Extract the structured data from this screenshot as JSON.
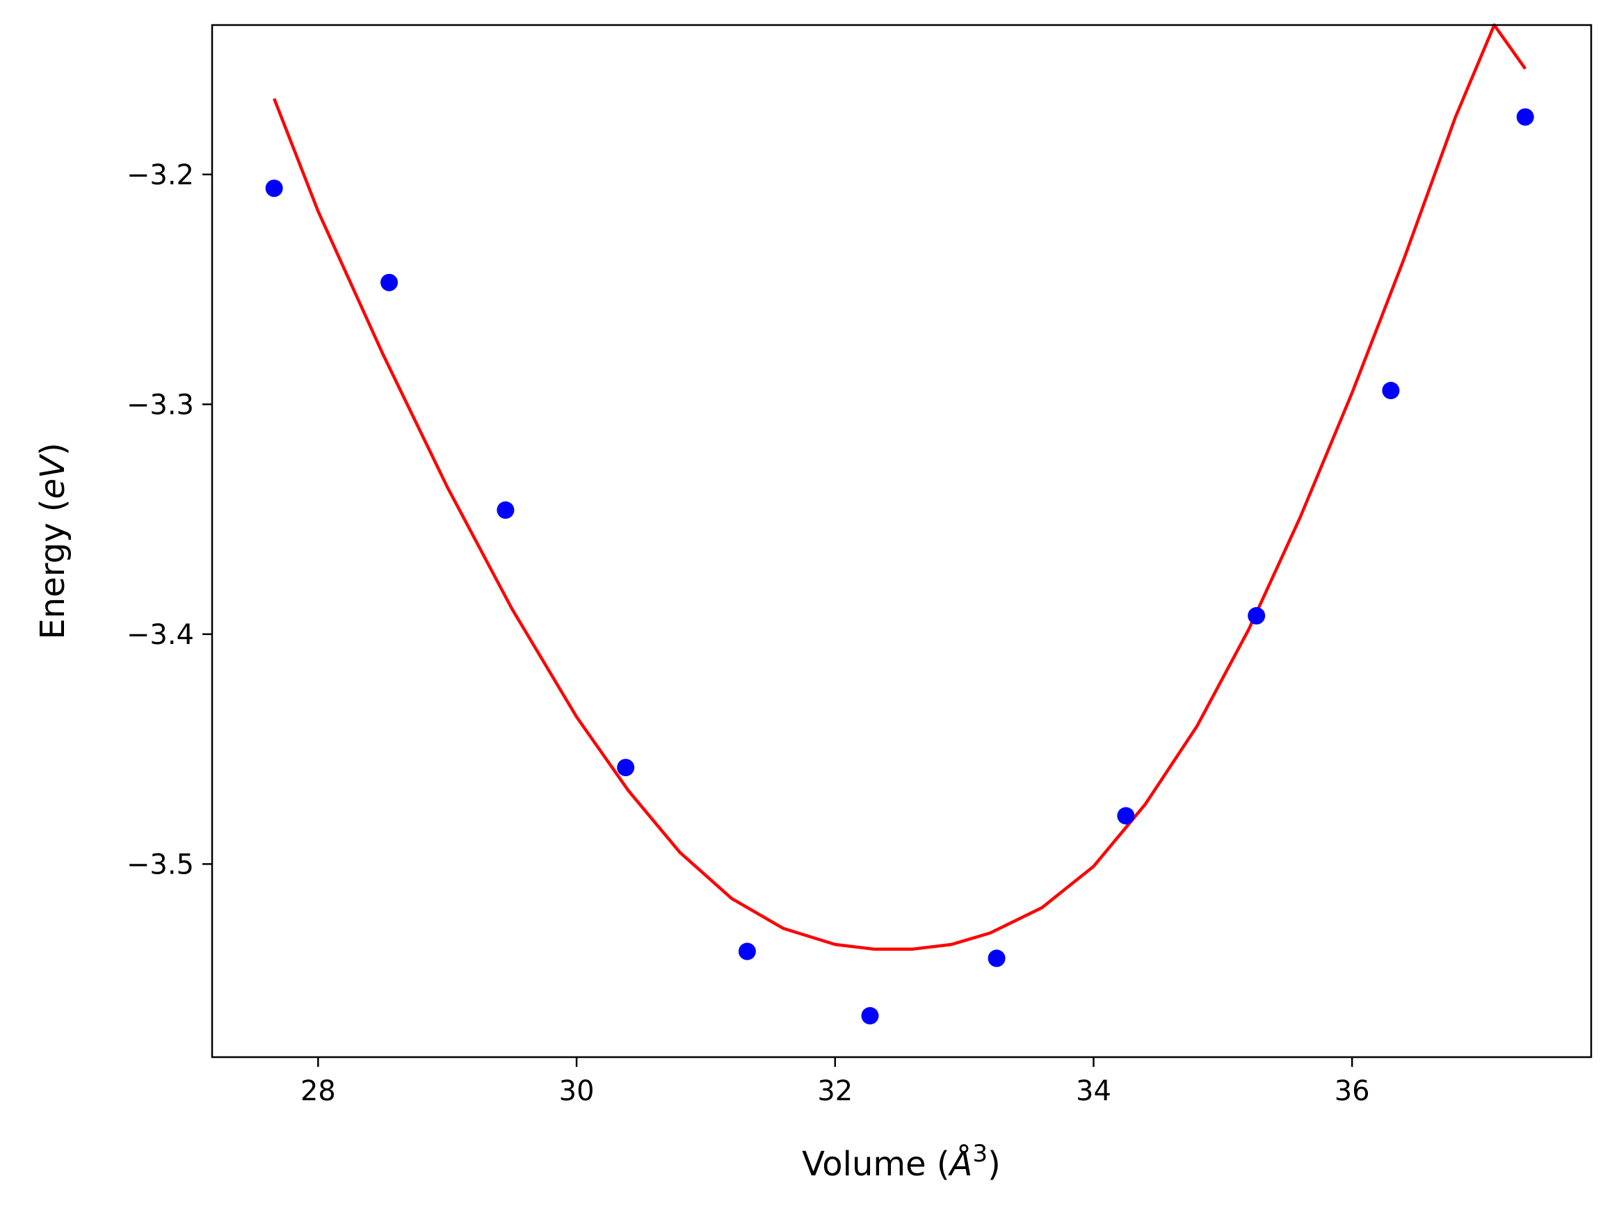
{
  "chart_data": {
    "type": "scatter",
    "xlabel": "Volume (Å³)",
    "xlabel_parts": {
      "prefix": "Volume (",
      "symbol": "Å",
      "superscript": "3",
      "suffix": ")"
    },
    "ylabel": "Energy (eV)",
    "ylabel_parts": {
      "prefix": "Energy (",
      "symbol": "eV",
      "suffix": ")"
    },
    "xlim": [
      27.18,
      37.85
    ],
    "ylim": [
      -3.584,
      -3.135
    ],
    "xticks": [
      28,
      30,
      32,
      34,
      36
    ],
    "xtick_labels": [
      "28",
      "30",
      "32",
      "34",
      "36"
    ],
    "yticks": [
      -3.2,
      -3.3,
      -3.4,
      -3.5
    ],
    "ytick_labels": [
      "−3.2",
      "−3.3",
      "−3.4",
      "−3.5"
    ],
    "grid": false,
    "series": [
      {
        "kind": "scatter",
        "color": "#0000ff",
        "x": [
          27.66,
          28.55,
          29.45,
          30.38,
          31.32,
          32.27,
          33.25,
          34.25,
          35.26,
          36.3,
          37.34
        ],
        "y": [
          -3.206,
          -3.247,
          -3.346,
          -3.458,
          -3.538,
          -3.566,
          -3.541,
          -3.479,
          -3.392,
          -3.294,
          -3.175
        ]
      },
      {
        "kind": "line",
        "color": "#ff0000",
        "x": [
          27.66,
          28.0,
          28.5,
          29.0,
          29.5,
          30.0,
          30.4,
          30.8,
          31.2,
          31.6,
          32.0,
          32.3,
          32.6,
          32.9,
          33.2,
          33.6,
          34.0,
          34.4,
          34.8,
          35.2,
          35.6,
          36.0,
          36.4,
          36.8,
          37.1,
          37.34
        ],
        "y": [
          -3.167,
          -3.216,
          -3.278,
          -3.336,
          -3.389,
          -3.436,
          -3.468,
          -3.495,
          -3.515,
          -3.528,
          -3.535,
          -3.537,
          -3.537,
          -3.535,
          -3.53,
          -3.519,
          -3.501,
          -3.474,
          -3.44,
          -3.398,
          -3.349,
          -3.295,
          -3.237,
          -3.175,
          -3.135,
          -3.154
        ]
      }
    ]
  }
}
